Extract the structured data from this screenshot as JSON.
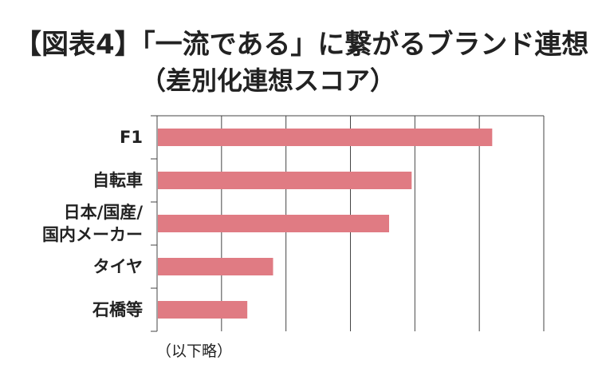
{
  "title_line1": "【図表4】「一流である」に繋がるブランド連想",
  "title_line2": "（差別化連想スコア）",
  "footnote": "（以下略）",
  "chart_data": {
    "type": "bar",
    "orientation": "horizontal",
    "categories": [
      "F1",
      "自転車",
      "日本/国産/国内メーカー",
      "タイヤ",
      "石橋等"
    ],
    "category_lines": [
      [
        "F1"
      ],
      [
        "自転車"
      ],
      [
        "日本/国産/",
        "国内メーカー"
      ],
      [
        "タイヤ"
      ],
      [
        "石橋等"
      ]
    ],
    "values": [
      5.2,
      3.95,
      3.6,
      1.8,
      1.4
    ],
    "xlim": [
      0,
      6
    ],
    "x_tick_labels_shown": false,
    "grid": true,
    "bar_color": "#e07b83"
  }
}
